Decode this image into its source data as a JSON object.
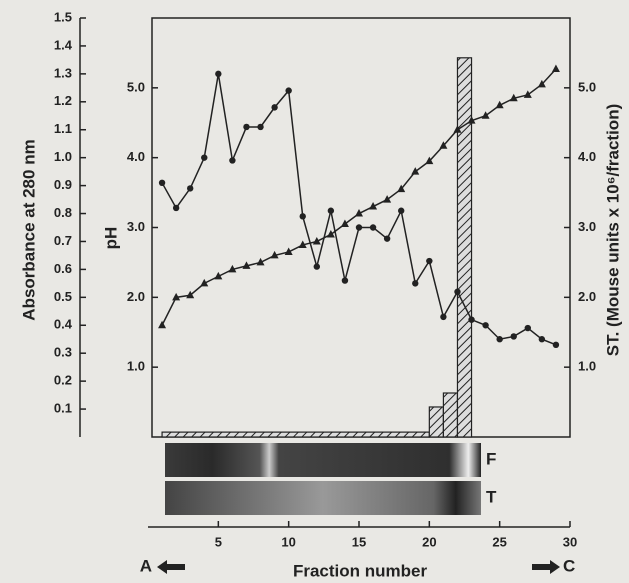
{
  "chart_data": {
    "type": "line",
    "x": [
      1,
      2,
      3,
      4,
      5,
      6,
      7,
      8,
      9,
      10,
      11,
      12,
      13,
      14,
      15,
      16,
      17,
      18,
      19,
      20,
      21,
      22,
      23,
      24,
      25,
      26,
      27,
      28,
      29
    ],
    "xlabel": "Fraction number",
    "xlim": [
      0,
      30
    ],
    "xticks": [
      5,
      10,
      15,
      20,
      25,
      30
    ],
    "ylabel": "Absorbance at 280 nm",
    "ylim": [
      0,
      1.5
    ],
    "yticks": [
      0.1,
      0.2,
      0.3,
      0.4,
      0.5,
      0.6,
      0.7,
      0.8,
      0.9,
      {
        "value": 1,
        "label": "1.0"
      },
      1.1,
      1.2,
      1.3,
      1.4,
      1.5
    ],
    "y3label": "pH",
    "y3lim": [
      0,
      6
    ],
    "y3ticks": [
      {
        "value": 1,
        "label": "1.0"
      },
      {
        "value": 2,
        "label": "2.0"
      },
      {
        "value": 3,
        "label": "3.0"
      },
      {
        "value": 4,
        "label": "4.0"
      },
      {
        "value": 5,
        "label": "5.0"
      }
    ],
    "y2label": "ST. (Mouse units x 10⁶/fraction)",
    "y2lim": [
      0,
      6
    ],
    "y2ticks": [
      {
        "value": 1,
        "label": "1.0"
      },
      {
        "value": 2,
        "label": "2.0"
      },
      {
        "value": 3,
        "label": "3.0"
      },
      {
        "value": 4,
        "label": "4.0"
      },
      {
        "value": 5,
        "label": "5.0"
      }
    ],
    "series": [
      {
        "marker": "circle",
        "color": "#222222",
        "axis": "y",
        "values": [
          0.91,
          0.82,
          0.89,
          1.0,
          1.3,
          0.99,
          1.11,
          1.11,
          1.18,
          1.24,
          0.79,
          0.61,
          0.81,
          0.56,
          0.75,
          0.75,
          0.71,
          0.81,
          0.55,
          0.63,
          0.43,
          0.52,
          0.42,
          0.4,
          0.35,
          0.36,
          0.39,
          0.35,
          0.33
        ]
      },
      {
        "marker": "triangle",
        "color": "#222222",
        "axis": "y3",
        "values": [
          1.6,
          2.0,
          2.03,
          2.2,
          2.3,
          2.4,
          2.45,
          2.5,
          2.6,
          2.65,
          2.75,
          2.8,
          2.9,
          3.05,
          3.2,
          3.3,
          3.4,
          3.55,
          3.8,
          3.95,
          4.17,
          4.4,
          4.53,
          4.6,
          4.75,
          4.85,
          4.9,
          5.05,
          5.27
        ]
      }
    ],
    "histogram": {
      "bins": [
        1,
        20,
        21,
        22,
        23
      ],
      "counts": [
        0.07,
        0.43,
        0.63,
        5.43
      ],
      "axis": "y2"
    },
    "strips": [
      "F",
      "T"
    ],
    "left_end": "A",
    "right_end": "C"
  }
}
